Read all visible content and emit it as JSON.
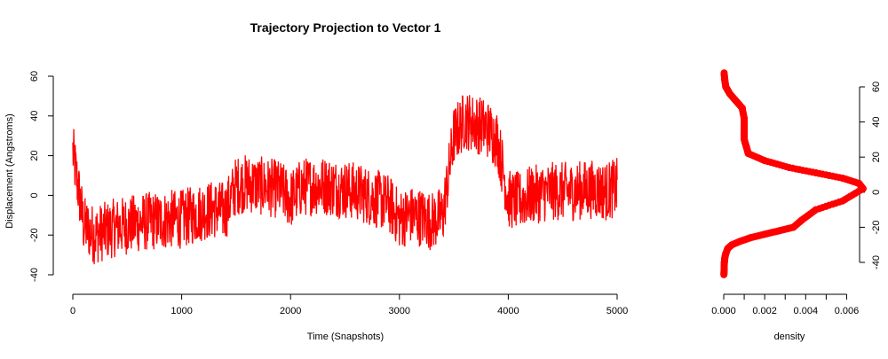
{
  "chart_data": [
    {
      "type": "line",
      "title": "Trajectory Projection to Vector 1",
      "xlabel": "Time (Snapshots)",
      "ylabel": "Displacement (Angstroms)",
      "xlim": [
        0,
        5000
      ],
      "ylim": [
        -40,
        60
      ],
      "x_ticks": [
        0,
        1000,
        2000,
        3000,
        4000,
        5000
      ],
      "y_ticks": [
        -40,
        -20,
        0,
        20,
        40,
        60
      ],
      "color": "#ff0000",
      "series": [
        {
          "x": [
            0,
            100,
            200,
            300,
            400,
            500,
            600,
            700,
            800,
            900,
            1000,
            1100,
            1200,
            1300,
            1400,
            1500,
            1600,
            1700,
            1800,
            1900,
            2000,
            2100,
            2200,
            2300,
            2400,
            2500,
            2600,
            2700,
            2800,
            2900,
            3000,
            3100,
            3200,
            3300,
            3400,
            3500,
            3600,
            3700,
            3800,
            3900,
            4000,
            4100,
            4200,
            4300,
            4400,
            4500,
            4600,
            4700,
            4800,
            4900,
            5000
          ],
          "values": [
            22,
            -15,
            -20,
            -18,
            -16,
            -15,
            -14,
            -13,
            -13,
            -12,
            -12,
            -10,
            -8,
            -7,
            -8,
            5,
            6,
            5,
            4,
            3,
            -2,
            4,
            5,
            5,
            4,
            3,
            2,
            0,
            -2,
            -4,
            -12,
            -10,
            -11,
            -13,
            -10,
            30,
            38,
            36,
            34,
            28,
            -2,
            -3,
            0,
            1,
            2,
            2,
            2,
            3,
            3,
            2,
            4
          ]
        }
      ],
      "grid": false
    },
    {
      "type": "line",
      "title": "",
      "xlabel": "density",
      "ylabel": "",
      "xlim": [
        0,
        0.0065
      ],
      "ylim": [
        -40,
        60
      ],
      "x_ticks": [
        0,
        0.002,
        0.004,
        0.006
      ],
      "x_tick_labels": [
        "0.000",
        "0.002",
        "0.004",
        "0.006"
      ],
      "y_ticks": [
        -40,
        -20,
        0,
        20,
        40,
        60
      ],
      "y_axis_side": "right",
      "color": "#ff0000",
      "marker": "filled-circle",
      "series": [
        {
          "density": [
            1e-05,
            2e-05,
            3e-05,
            6e-05,
            0.0001,
            0.0002,
            0.0004,
            0.0008,
            0.0013,
            0.002,
            0.0027,
            0.0034,
            0.0038,
            0.0045,
            0.0058,
            0.0068,
            0.0066,
            0.0058,
            0.0045,
            0.0032,
            0.002,
            0.0012,
            0.0011,
            0.001,
            0.001,
            0.001,
            0.0009,
            0.0006,
            0.0003,
            0.0001,
            5e-05,
            2e-05
          ],
          "y": [
            -47,
            -44,
            -40,
            -37,
            -35,
            -32,
            -30,
            -28,
            -26,
            -24,
            -22,
            -20,
            -16,
            -10,
            -5,
            2,
            5,
            8,
            11,
            14,
            18,
            22,
            26,
            30,
            35,
            42,
            48,
            52,
            56,
            60,
            64,
            68
          ]
        }
      ],
      "grid": false
    }
  ]
}
